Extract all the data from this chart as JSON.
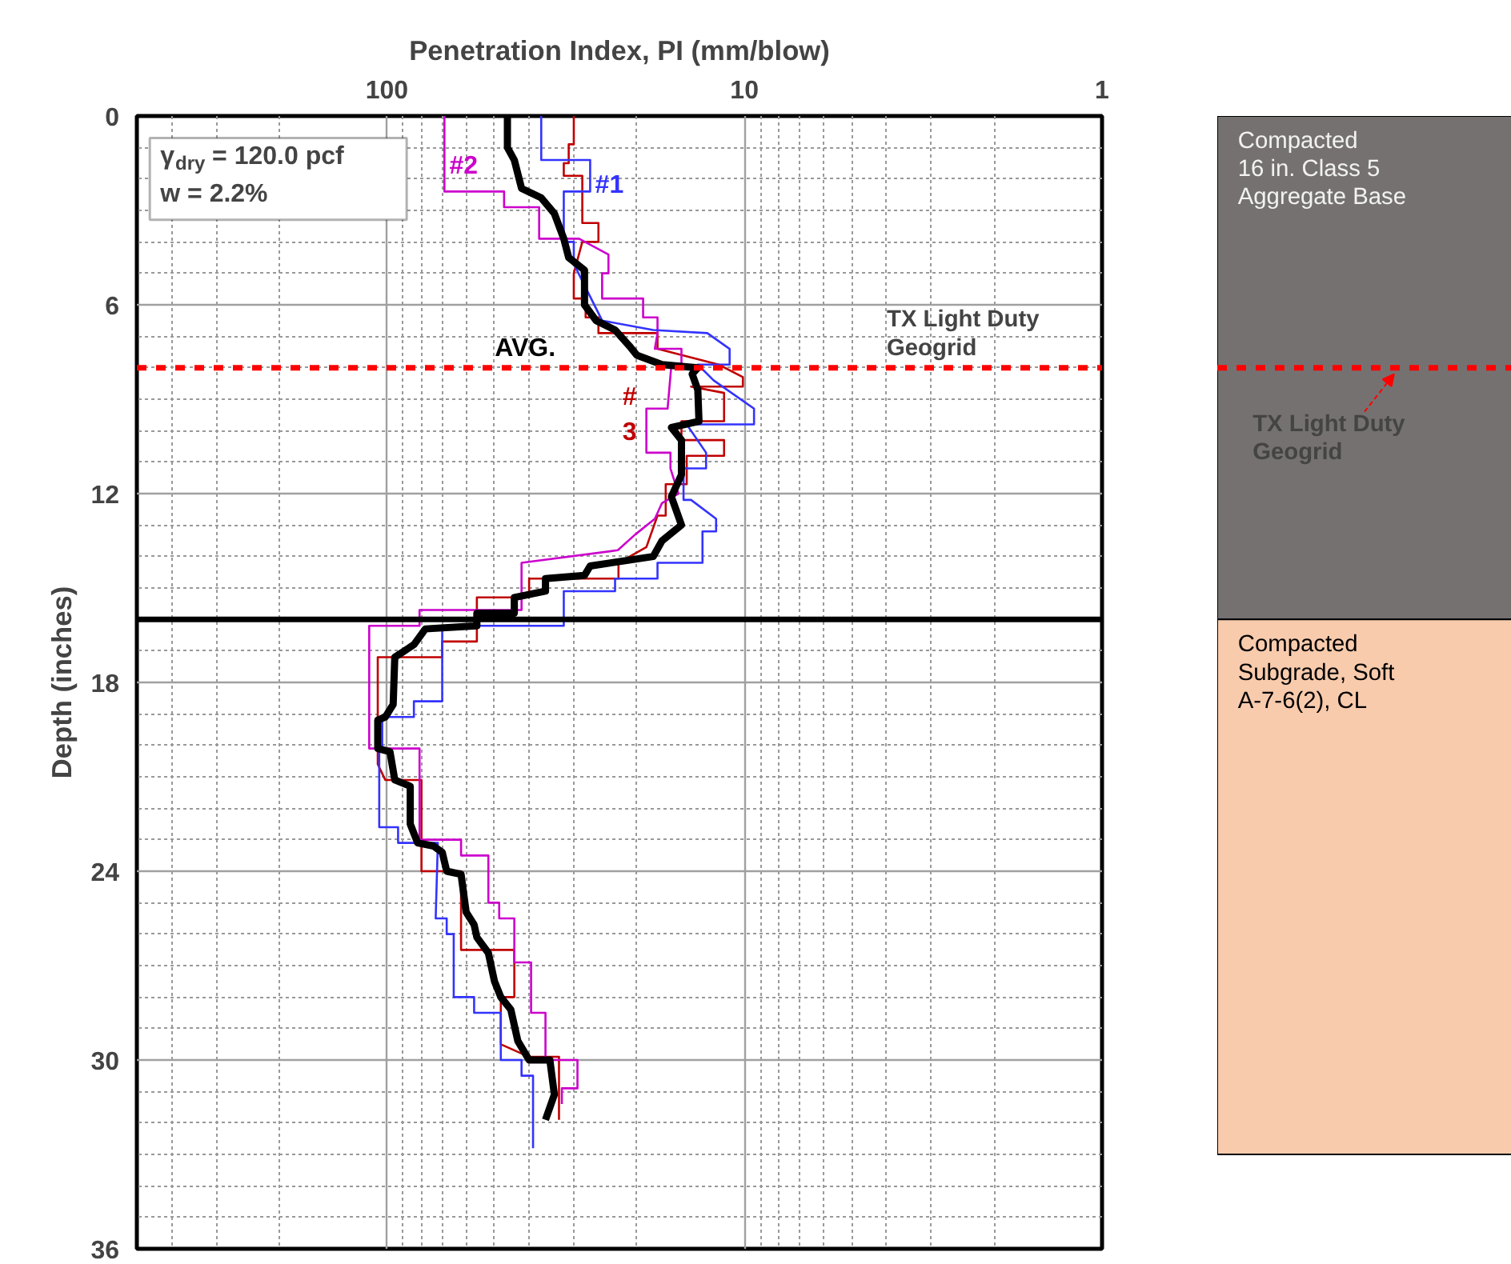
{
  "chart_data": [
    {
      "type": "line",
      "xlabel": "Penetration Index, PI (mm/blow)",
      "ylabel": "Depth (inches)",
      "log": "x",
      "xlim": [
        500,
        1
      ],
      "xticks": [
        100,
        10,
        1
      ],
      "ylim": [
        36,
        0
      ],
      "yticks": [
        0,
        6,
        12,
        18,
        24,
        30,
        36
      ],
      "grid": true,
      "series": [
        {
          "name": "AVG.",
          "color": "#000000",
          "x": [
            46,
            46,
            44,
            42,
            37,
            34,
            32,
            31,
            28,
            28,
            26,
            23,
            21,
            20,
            17,
            13.5,
            14,
            13.5,
            13.4,
            16,
            15,
            15,
            16,
            15,
            17,
            18,
            27,
            28,
            36,
            36,
            44,
            44,
            56,
            56,
            78,
            84,
            95,
            96,
            101,
            106,
            106,
            98,
            95,
            86,
            86,
            82,
            74,
            70,
            68,
            62,
            60,
            57,
            56,
            52,
            50,
            48,
            45,
            43,
            40,
            35,
            34,
            36
          ],
          "values": [
            0,
            1.0,
            1.4,
            2.3,
            2.6,
            3.1,
            3.9,
            4.5,
            4.9,
            6.0,
            6.5,
            6.8,
            7.3,
            7.6,
            7.9,
            8.0,
            8.2,
            8.7,
            9.7,
            9.9,
            10.3,
            11.4,
            12.1,
            13.0,
            13.5,
            14.0,
            14.3,
            14.6,
            14.7,
            15.1,
            15.3,
            15.8,
            15.8,
            16.2,
            16.3,
            16.8,
            17.2,
            18.7,
            19.1,
            19.2,
            20.1,
            20.2,
            21.1,
            21.3,
            22.5,
            23.1,
            23.2,
            23.4,
            24.0,
            24.1,
            25.3,
            25.7,
            26.1,
            26.6,
            27.5,
            28.0,
            28.4,
            29.4,
            30.0,
            30.0,
            31.1,
            31.9
          ]
        },
        {
          "name": "#1",
          "color": "#3333ff",
          "x": [
            37,
            37,
            27,
            27,
            32,
            32,
            30,
            30,
            25,
            18,
            12.7,
            11,
            11,
            13.5,
            12.2,
            9.4,
            9.4,
            14.5,
            12.8,
            12.8,
            14.8,
            14.8,
            14.1,
            12,
            12,
            13.1,
            13.1,
            17.5,
            17.5,
            23,
            23,
            32,
            32,
            70,
            70,
            84,
            84,
            103,
            103,
            105,
            105,
            93,
            93,
            72,
            73,
            68,
            68,
            65,
            65,
            57,
            57,
            48,
            48,
            42,
            42,
            39,
            39
          ],
          "values": [
            0,
            1.4,
            1.4,
            2.4,
            2.4,
            4.0,
            4.0,
            4.7,
            6.5,
            6.8,
            6.9,
            7.4,
            7.9,
            7.9,
            8.4,
            9.3,
            9.8,
            9.8,
            10.7,
            11.2,
            11.2,
            12.2,
            12.2,
            12.8,
            13.2,
            13.2,
            14.2,
            14.2,
            14.7,
            14.7,
            15.1,
            15.1,
            16.2,
            16.2,
            18.6,
            18.6,
            19.1,
            19.1,
            20.1,
            20.1,
            22.6,
            22.6,
            23.1,
            23.1,
            25.5,
            25.5,
            26.0,
            26.0,
            28.0,
            28.0,
            28.5,
            28.5,
            30.0,
            30.0,
            30.5,
            30.5,
            32.8
          ]
        },
        {
          "name": "#2",
          "color": "#cc00cc",
          "x": [
            69,
            69,
            47,
            47,
            37.5,
            37.5,
            29,
            24,
            24,
            25,
            25,
            19.2,
            19.2,
            17.5,
            17.5,
            17.8,
            15,
            15,
            16,
            16.4,
            18.8,
            18.8,
            16.1,
            16.1,
            15.3,
            17,
            17.8,
            20.2,
            22.6,
            42,
            42,
            81,
            81,
            112,
            112,
            81,
            81,
            62,
            62,
            52,
            52,
            48.5,
            48.5,
            44,
            44,
            39.5,
            39.5,
            36,
            36,
            29.3,
            29.3,
            32.4,
            32.4
          ],
          "values": [
            0,
            2.4,
            2.4,
            2.9,
            2.9,
            3.9,
            3.9,
            4.4,
            5.0,
            5.0,
            5.8,
            5.8,
            6.4,
            6.4,
            6.9,
            7.4,
            7.4,
            7.9,
            7.9,
            9.3,
            9.3,
            10.7,
            10.7,
            11.2,
            12.0,
            12.3,
            12.8,
            13.3,
            13.8,
            14.2,
            15.7,
            15.7,
            16.2,
            16.2,
            20.1,
            20.1,
            23.0,
            23.0,
            23.5,
            23.5,
            25.0,
            25.0,
            25.5,
            25.5,
            26.9,
            26.9,
            28.5,
            28.5,
            30.0,
            30.0,
            30.9,
            30.9,
            31.4
          ]
        },
        {
          "name": "#\n3",
          "color": "#c00000",
          "x": [
            30,
            30,
            31,
            31,
            32,
            32,
            28.4,
            28.4,
            25.6,
            25.6,
            28.4,
            30,
            30,
            27.8,
            27.8,
            25.6,
            25.6,
            17.5,
            17.5,
            11.8,
            10.1,
            10.1,
            14.1,
            11.4,
            11.4,
            15,
            15,
            11.4,
            11.4,
            14.5,
            14.5,
            16.6,
            16.6,
            17.5,
            18.8,
            22.5,
            22.5,
            40,
            40,
            56,
            56,
            70,
            70,
            106,
            106,
            101,
            80,
            80,
            62,
            62,
            44,
            44,
            48,
            48,
            40,
            33,
            33
          ],
          "values": [
            0,
            0.9,
            0.9,
            1.5,
            1.5,
            1.9,
            1.9,
            3.4,
            3.4,
            4.0,
            4.0,
            5.0,
            5.8,
            5.8,
            6.4,
            6.4,
            6.9,
            6.9,
            7.4,
            7.9,
            8.3,
            8.6,
            8.6,
            8.8,
            9.7,
            9.7,
            10.3,
            10.3,
            10.8,
            10.8,
            11.7,
            11.7,
            12.7,
            12.7,
            13.7,
            14.2,
            14.7,
            14.7,
            15.3,
            15.3,
            16.7,
            16.7,
            17.2,
            17.2,
            20.6,
            21.1,
            21.1,
            24.0,
            24.0,
            26.5,
            26.5,
            28.0,
            28.0,
            29.5,
            29.9,
            29.9,
            31.9
          ]
        }
      ],
      "annotations": [
        "γ$_{dry}$ = 120.0 pcf",
        "w = 2.2%"
      ],
      "ref_lines": [
        {
          "axis": "y",
          "value": 8.0,
          "label": "TX Light Duty\nGeogrid",
          "color": "#ff0000",
          "line_style": "dashed"
        },
        {
          "axis": "y",
          "value": 16.0,
          "color": "#000000",
          "line_style": "solid"
        }
      ]
    },
    {
      "type": "bar",
      "stacked": true,
      "categories": [
        null
      ],
      "ylim": [
        36,
        0
      ],
      "yticks": [
        0,
        6,
        12,
        18,
        24,
        30,
        36
      ],
      "tick_labels": false,
      "series": [
        {
          "name": "Compacted\n16 in. Class 5\nAggregate Base",
          "color": "#767171",
          "values": [
            16.0
          ]
        },
        {
          "name": "Compacted\nSubgrade, Soft\nA-7-6(2), CL",
          "color": "#f8cbad",
          "values": [
            17.0
          ]
        }
      ],
      "ref_lines": [
        {
          "axis": "y",
          "value": 8.0,
          "label": "TX Light Duty\nGeogrid",
          "color": "#ff0000",
          "line_style": "dashed"
        }
      ]
    }
  ]
}
